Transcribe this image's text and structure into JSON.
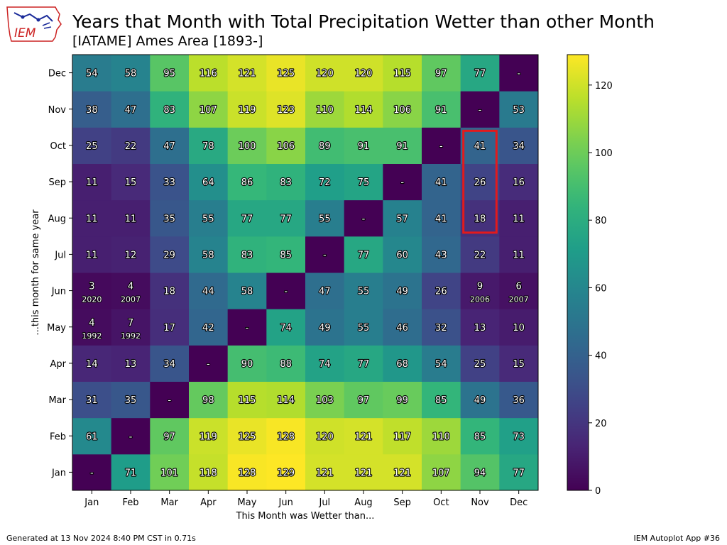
{
  "header": {
    "title": "Years that Month with Total Precipitation Wetter than other Month",
    "subtitle": "[IATAME] Ames Area [1893-]",
    "logo_text": "IEM"
  },
  "footer": {
    "generated": "Generated at 13 Nov 2024 8:40 PM CST in 0.71s",
    "app": "IEM Autoplot App #36"
  },
  "chart_data": {
    "type": "heatmap",
    "title": "Years that Month with Total Precipitation Wetter than other Month",
    "subtitle": "[IATAME] Ames Area [1893-]",
    "xlabel": "This Month was Wetter than...",
    "ylabel": "...this month for same year",
    "x_categories": [
      "Jan",
      "Feb",
      "Mar",
      "Apr",
      "May",
      "Jun",
      "Jul",
      "Aug",
      "Sep",
      "Oct",
      "Nov",
      "Dec"
    ],
    "y_categories": [
      "Jan",
      "Feb",
      "Mar",
      "Apr",
      "May",
      "Jun",
      "Jul",
      "Aug",
      "Sep",
      "Oct",
      "Nov",
      "Dec"
    ],
    "values": [
      [
        null,
        71,
        101,
        118,
        128,
        129,
        121,
        121,
        121,
        107,
        94,
        77
      ],
      [
        61,
        null,
        97,
        119,
        125,
        128,
        120,
        121,
        117,
        110,
        85,
        73
      ],
      [
        31,
        35,
        null,
        98,
        115,
        114,
        103,
        97,
        99,
        85,
        49,
        36
      ],
      [
        14,
        13,
        34,
        null,
        90,
        88,
        74,
        77,
        68,
        54,
        25,
        15
      ],
      [
        4,
        7,
        17,
        42,
        null,
        74,
        49,
        55,
        46,
        32,
        13,
        10
      ],
      [
        3,
        4,
        18,
        44,
        58,
        null,
        47,
        55,
        49,
        26,
        9,
        6
      ],
      [
        11,
        12,
        29,
        58,
        83,
        85,
        null,
        77,
        60,
        43,
        22,
        11
      ],
      [
        11,
        11,
        35,
        55,
        77,
        77,
        55,
        null,
        57,
        41,
        18,
        11
      ],
      [
        11,
        15,
        33,
        64,
        86,
        83,
        72,
        75,
        null,
        41,
        26,
        16
      ],
      [
        25,
        22,
        47,
        78,
        100,
        106,
        89,
        91,
        91,
        null,
        41,
        34
      ],
      [
        38,
        47,
        83,
        107,
        119,
        123,
        110,
        114,
        106,
        91,
        null,
        53
      ],
      [
        54,
        58,
        95,
        116,
        121,
        125,
        120,
        120,
        115,
        97,
        77,
        null
      ]
    ],
    "missing_label": "-",
    "year_annotations": [
      {
        "row": "May",
        "col": "Jan",
        "year": "1992"
      },
      {
        "row": "May",
        "col": "Feb",
        "year": "1992"
      },
      {
        "row": "Jun",
        "col": "Jan",
        "year": "2020"
      },
      {
        "row": "Jun",
        "col": "Feb",
        "year": "2007"
      },
      {
        "row": "Jun",
        "col": "Nov",
        "year": "2006"
      },
      {
        "row": "Jun",
        "col": "Dec",
        "year": "2007"
      }
    ],
    "highlight": {
      "col": "Nov",
      "rows": [
        "Aug",
        "Sep",
        "Oct"
      ],
      "color": "#e31a1c"
    },
    "colormap": "viridis",
    "colorbar": {
      "min": 0,
      "max": 129,
      "ticks": [
        0,
        20,
        40,
        60,
        80,
        100,
        120
      ]
    },
    "grid": false
  }
}
